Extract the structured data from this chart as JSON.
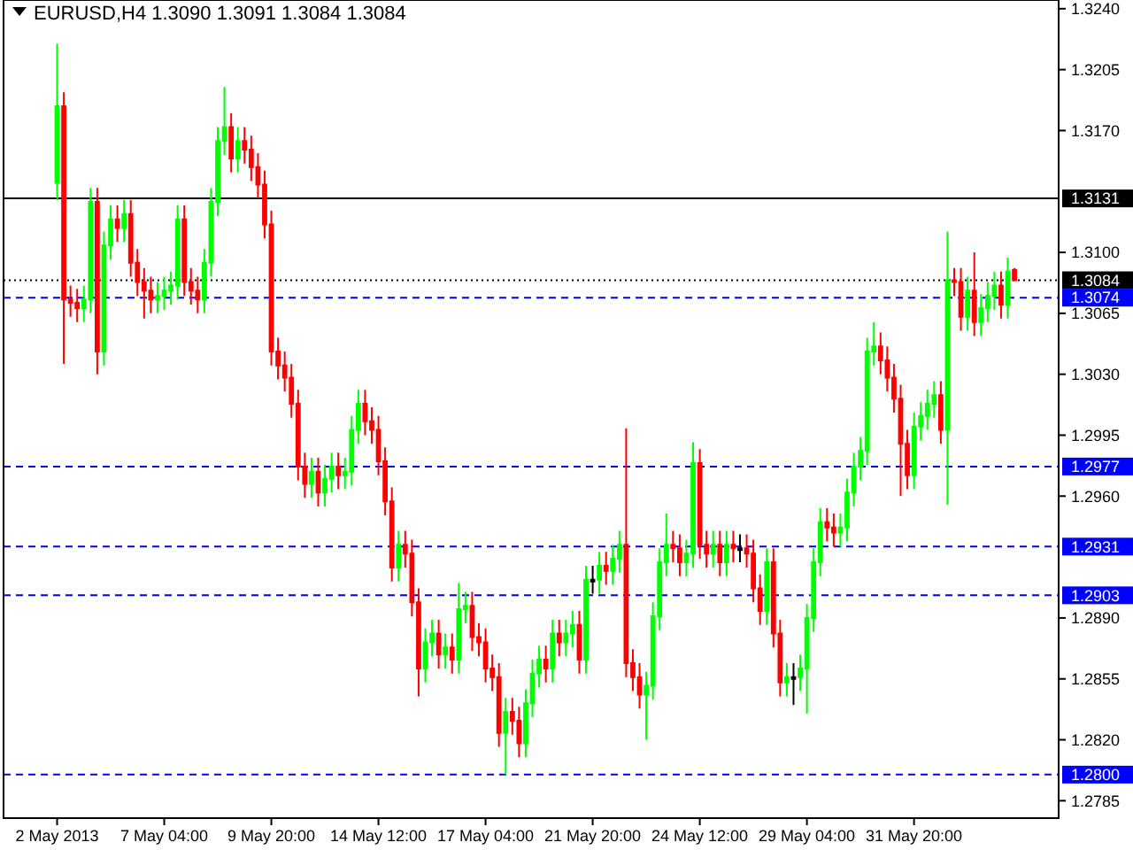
{
  "chart_data": {
    "type": "candlestick",
    "title": "EURUSD,H4  1.3090 1.3091 1.3084 1.3084",
    "categories": [
      "2 May 2013",
      null,
      null,
      null,
      null,
      null,
      null,
      null,
      null,
      null,
      null,
      null,
      null,
      null,
      null,
      null,
      "7 May 04:00",
      null,
      null,
      null,
      null,
      null,
      null,
      null,
      null,
      null,
      null,
      null,
      null,
      null,
      null,
      null,
      "9 May 20:00",
      null,
      null,
      null,
      null,
      null,
      null,
      null,
      null,
      null,
      null,
      null,
      null,
      null,
      null,
      null,
      "14 May 12:00",
      null,
      null,
      null,
      null,
      null,
      null,
      null,
      null,
      null,
      null,
      null,
      null,
      null,
      null,
      null,
      "17 May 04:00",
      null,
      null,
      null,
      null,
      null,
      null,
      null,
      null,
      null,
      null,
      null,
      null,
      null,
      null,
      null,
      "21 May 20:00",
      null,
      null,
      null,
      null,
      null,
      null,
      null,
      null,
      null,
      null,
      null,
      null,
      null,
      null,
      null,
      "24 May 12:00",
      null,
      null,
      null,
      null,
      null,
      null,
      null,
      null,
      null,
      null,
      null,
      null,
      null,
      null,
      null,
      "29 May 04:00",
      null,
      null,
      null,
      null,
      null,
      null,
      null,
      null,
      null,
      null,
      null,
      null,
      null,
      null,
      null,
      "31 May 20:00",
      null,
      null,
      null,
      null,
      null,
      null,
      null,
      null,
      null,
      null,
      null,
      null,
      null,
      null,
      null
    ],
    "ohlc": [
      [
        1.314,
        1.322,
        1.313,
        1.3184
      ],
      [
        1.3184,
        1.3192,
        1.3036,
        1.3073
      ],
      [
        1.3073,
        1.3081,
        1.3063,
        1.3071
      ],
      [
        1.3071,
        1.3079,
        1.306,
        1.3068
      ],
      [
        1.3068,
        1.3081,
        1.306,
        1.3073
      ],
      [
        1.3073,
        1.3137,
        1.3065,
        1.3129
      ],
      [
        1.3129,
        1.3137,
        1.303,
        1.3043
      ],
      [
        1.3043,
        1.3112,
        1.3035,
        1.3104
      ],
      [
        1.3104,
        1.3127,
        1.3096,
        1.3119
      ],
      [
        1.3119,
        1.3127,
        1.3106,
        1.3114
      ],
      [
        1.3114,
        1.313,
        1.3106,
        1.3122
      ],
      [
        1.3122,
        1.313,
        1.3086,
        1.3094
      ],
      [
        1.3094,
        1.3102,
        1.3075,
        1.3083
      ],
      [
        1.3083,
        1.3091,
        1.3062,
        1.3078
      ],
      [
        1.3078,
        1.3086,
        1.3065,
        1.3073
      ],
      [
        1.3073,
        1.3083,
        1.3065,
        1.3075
      ],
      [
        1.3075,
        1.3086,
        1.3067,
        1.3078
      ],
      [
        1.3078,
        1.3089,
        1.307,
        1.3081
      ],
      [
        1.3081,
        1.3127,
        1.3073,
        1.3119
      ],
      [
        1.3119,
        1.3127,
        1.3075,
        1.3083
      ],
      [
        1.3083,
        1.3091,
        1.307,
        1.3078
      ],
      [
        1.3078,
        1.3086,
        1.3065,
        1.3073
      ],
      [
        1.3073,
        1.3102,
        1.3065,
        1.3094
      ],
      [
        1.3094,
        1.3137,
        1.3086,
        1.3129
      ],
      [
        1.3129,
        1.3172,
        1.3121,
        1.3164
      ],
      [
        1.3164,
        1.3195,
        1.3156,
        1.3172
      ],
      [
        1.3172,
        1.318,
        1.3146,
        1.3154
      ],
      [
        1.3154,
        1.3172,
        1.3146,
        1.3164
      ],
      [
        1.3164,
        1.3172,
        1.3151,
        1.3159
      ],
      [
        1.3159,
        1.3167,
        1.3141,
        1.3149
      ],
      [
        1.3149,
        1.3157,
        1.3131,
        1.3139
      ],
      [
        1.3139,
        1.3147,
        1.3108,
        1.3116
      ],
      [
        1.3116,
        1.3124,
        1.3035,
        1.3043
      ],
      [
        1.3043,
        1.3051,
        1.3027,
        1.3035
      ],
      [
        1.3035,
        1.3043,
        1.302,
        1.3028
      ],
      [
        1.3028,
        1.3036,
        1.3005,
        1.3013
      ],
      [
        1.3013,
        1.3021,
        1.2969,
        1.2977
      ],
      [
        1.2977,
        1.2985,
        1.2959,
        1.2967
      ],
      [
        1.2967,
        1.2982,
        1.2959,
        1.2974
      ],
      [
        1.2974,
        1.2982,
        1.2954,
        1.2962
      ],
      [
        1.2962,
        1.2978,
        1.2954,
        1.297
      ],
      [
        1.297,
        1.2985,
        1.2962,
        1.2977
      ],
      [
        1.2977,
        1.2985,
        1.2964,
        1.2972
      ],
      [
        1.2972,
        1.2982,
        1.2964,
        1.2974
      ],
      [
        1.2974,
        1.3006,
        1.2966,
        1.2998
      ],
      [
        1.2998,
        1.3021,
        1.299,
        1.3013
      ],
      [
        1.3013,
        1.3021,
        1.2995,
        1.3003
      ],
      [
        1.3003,
        1.3011,
        1.299,
        1.2998
      ],
      [
        1.2998,
        1.3006,
        1.2972,
        1.298
      ],
      [
        1.298,
        1.2988,
        1.2949,
        1.2957
      ],
      [
        1.2957,
        1.2965,
        1.2911,
        1.2919
      ],
      [
        1.2919,
        1.294,
        1.2911,
        1.2932
      ],
      [
        1.2932,
        1.294,
        1.2919,
        1.2927
      ],
      [
        1.2927,
        1.2935,
        1.2891,
        1.2899
      ],
      [
        1.2899,
        1.2907,
        1.2845,
        1.2861
      ],
      [
        1.2861,
        1.2884,
        1.2853,
        1.2876
      ],
      [
        1.2876,
        1.2889,
        1.2868,
        1.2881
      ],
      [
        1.2881,
        1.2889,
        1.2861,
        1.2869
      ],
      [
        1.2869,
        1.2881,
        1.2861,
        1.2873
      ],
      [
        1.2873,
        1.2881,
        1.2858,
        1.2866
      ],
      [
        1.2866,
        1.291,
        1.2858,
        1.2895
      ],
      [
        1.2895,
        1.2905,
        1.2887,
        1.2897
      ],
      [
        1.2897,
        1.2905,
        1.2871,
        1.2879
      ],
      [
        1.2879,
        1.2887,
        1.2868,
        1.2876
      ],
      [
        1.2876,
        1.2884,
        1.2853,
        1.2861
      ],
      [
        1.2861,
        1.2869,
        1.2848,
        1.2856
      ],
      [
        1.2856,
        1.2864,
        1.2816,
        1.2824
      ],
      [
        1.2824,
        1.2844,
        1.28,
        1.2836
      ],
      [
        1.2836,
        1.2844,
        1.2823,
        1.2831
      ],
      [
        1.2831,
        1.2839,
        1.281,
        1.2818
      ],
      [
        1.2818,
        1.2849,
        1.281,
        1.2841
      ],
      [
        1.2841,
        1.2866,
        1.2833,
        1.2858
      ],
      [
        1.2858,
        1.2874,
        1.285,
        1.2866
      ],
      [
        1.2866,
        1.2874,
        1.2853,
        1.2861
      ],
      [
        1.2861,
        1.2889,
        1.2853,
        1.2881
      ],
      [
        1.2881,
        1.2889,
        1.2868,
        1.2876
      ],
      [
        1.2876,
        1.2889,
        1.2868,
        1.2881
      ],
      [
        1.2881,
        1.2894,
        1.2873,
        1.2886
      ],
      [
        1.2886,
        1.2894,
        1.2858,
        1.2866
      ],
      [
        1.2866,
        1.292,
        1.2858,
        1.2912
      ],
      [
        1.2912,
        1.292,
        1.2904,
        1.2912
      ],
      [
        1.2912,
        1.2928,
        1.2904,
        1.292
      ],
      [
        1.292,
        1.2928,
        1.2909,
        1.2917
      ],
      [
        1.2917,
        1.2932,
        1.2909,
        1.2924
      ],
      [
        1.2924,
        1.294,
        1.2916,
        1.2932
      ],
      [
        1.2932,
        1.2999,
        1.2856,
        1.2864
      ],
      [
        1.2864,
        1.2872,
        1.2848,
        1.2856
      ],
      [
        1.2856,
        1.2864,
        1.2838,
        1.2846
      ],
      [
        1.2846,
        1.2859,
        1.282,
        1.2851
      ],
      [
        1.2851,
        1.2899,
        1.2843,
        1.2891
      ],
      [
        1.2891,
        1.293,
        1.2883,
        1.2922
      ],
      [
        1.2922,
        1.295,
        1.2914,
        1.2932
      ],
      [
        1.2932,
        1.294,
        1.2922,
        1.293
      ],
      [
        1.293,
        1.2938,
        1.2914,
        1.2922
      ],
      [
        1.2922,
        1.2935,
        1.2914,
        1.2927
      ],
      [
        1.2927,
        1.2991,
        1.2919,
        1.2979
      ],
      [
        1.2979,
        1.2987,
        1.2924,
        1.2932
      ],
      [
        1.2932,
        1.294,
        1.2919,
        1.2927
      ],
      [
        1.2927,
        1.294,
        1.2919,
        1.2932
      ],
      [
        1.2932,
        1.294,
        1.2914,
        1.2922
      ],
      [
        1.2922,
        1.294,
        1.2914,
        1.2932
      ],
      [
        1.2932,
        1.294,
        1.2922,
        1.293
      ],
      [
        1.293,
        1.2938,
        1.2922,
        1.293
      ],
      [
        1.293,
        1.2938,
        1.2919,
        1.2927
      ],
      [
        1.2927,
        1.2935,
        1.2899,
        1.2907
      ],
      [
        1.2907,
        1.2915,
        1.2886,
        1.2894
      ],
      [
        1.2894,
        1.293,
        1.2886,
        1.2922
      ],
      [
        1.2922,
        1.293,
        1.2873,
        1.2881
      ],
      [
        1.2881,
        1.2889,
        1.2845,
        1.2853
      ],
      [
        1.2853,
        1.2864,
        1.2845,
        1.2856
      ],
      [
        1.2856,
        1.2864,
        1.284,
        1.2856
      ],
      [
        1.2856,
        1.2869,
        1.2848,
        1.2861
      ],
      [
        1.2861,
        1.2898,
        1.2835,
        1.289
      ],
      [
        1.289,
        1.293,
        1.2882,
        1.2922
      ],
      [
        1.2922,
        1.2953,
        1.2914,
        1.2945
      ],
      [
        1.2945,
        1.2953,
        1.2934,
        1.2942
      ],
      [
        1.2942,
        1.295,
        1.2931,
        1.2939
      ],
      [
        1.2939,
        1.295,
        1.2931,
        1.2942
      ],
      [
        1.2942,
        1.297,
        1.2934,
        1.2962
      ],
      [
        1.2962,
        1.2985,
        1.2954,
        1.2977
      ],
      [
        1.2977,
        1.2994,
        1.2969,
        1.2986
      ],
      [
        1.2986,
        1.3051,
        1.2978,
        1.3043
      ],
      [
        1.3043,
        1.306,
        1.3035,
        1.3046
      ],
      [
        1.3046,
        1.3054,
        1.303,
        1.3038
      ],
      [
        1.3038,
        1.3046,
        1.302,
        1.3028
      ],
      [
        1.3028,
        1.3036,
        1.3008,
        1.3016
      ],
      [
        1.3016,
        1.3024,
        1.296,
        1.299
      ],
      [
        1.299,
        1.2998,
        1.2964,
        1.2972
      ],
      [
        1.2972,
        1.3008,
        1.2964,
        1.3
      ],
      [
        1.3,
        1.3014,
        1.2992,
        1.3006
      ],
      [
        1.3006,
        1.3021,
        1.2998,
        1.3013
      ],
      [
        1.3013,
        1.3026,
        1.3005,
        1.3018
      ],
      [
        1.3018,
        1.3026,
        1.299,
        1.2998
      ],
      [
        1.2998,
        1.3112,
        1.2955,
        1.3084
      ],
      [
        1.3084,
        1.3091,
        1.3075,
        1.3083
      ],
      [
        1.3083,
        1.3091,
        1.3055,
        1.3063
      ],
      [
        1.3063,
        1.3086,
        1.3055,
        1.3078
      ],
      [
        1.3078,
        1.31,
        1.3052,
        1.306
      ],
      [
        1.306,
        1.3076,
        1.3052,
        1.3068
      ],
      [
        1.3068,
        1.3083,
        1.306,
        1.3075
      ],
      [
        1.3075,
        1.3089,
        1.3067,
        1.3081
      ],
      [
        1.3081,
        1.3089,
        1.3062,
        1.307
      ],
      [
        1.307,
        1.3097,
        1.3062,
        1.3089
      ],
      [
        1.309,
        1.3091,
        1.3084,
        1.3084
      ]
    ],
    "colors": [
      "#00ff00",
      "#ff0000",
      "#ff0000",
      "#ff0000",
      "#00ff00",
      "#00ff00",
      "#ff0000",
      "#00ff00",
      "#00ff00",
      "#ff0000",
      "#00ff00",
      "#ff0000",
      "#ff0000",
      "#ff0000",
      "#ff0000",
      "#00ff00",
      "#00ff00",
      "#00ff00",
      "#00ff00",
      "#ff0000",
      "#ff0000",
      "#ff0000",
      "#00ff00",
      "#00ff00",
      "#00ff00",
      "#00ff00",
      "#ff0000",
      "#00ff00",
      "#ff0000",
      "#ff0000",
      "#ff0000",
      "#ff0000",
      "#ff0000",
      "#ff0000",
      "#ff0000",
      "#ff0000",
      "#ff0000",
      "#ff0000",
      "#00ff00",
      "#ff0000",
      "#00ff00",
      "#00ff00",
      "#ff0000",
      "#00ff00",
      "#00ff00",
      "#00ff00",
      "#ff0000",
      "#ff0000",
      "#ff0000",
      "#ff0000",
      "#ff0000",
      "#00ff00",
      "#ff0000",
      "#ff0000",
      "#ff0000",
      "#00ff00",
      "#00ff00",
      "#ff0000",
      "#00ff00",
      "#ff0000",
      "#00ff00",
      "#00ff00",
      "#ff0000",
      "#ff0000",
      "#ff0000",
      "#ff0000",
      "#ff0000",
      "#00ff00",
      "#ff0000",
      "#ff0000",
      "#00ff00",
      "#00ff00",
      "#00ff00",
      "#ff0000",
      "#00ff00",
      "#ff0000",
      "#00ff00",
      "#00ff00",
      "#ff0000",
      "#00ff00",
      "#000000",
      "#00ff00",
      "#ff0000",
      "#00ff00",
      "#00ff00",
      "#ff0000",
      "#ff0000",
      "#ff0000",
      "#00ff00",
      "#00ff00",
      "#00ff00",
      "#00ff00",
      "#ff0000",
      "#ff0000",
      "#00ff00",
      "#00ff00",
      "#ff0000",
      "#ff0000",
      "#00ff00",
      "#ff0000",
      "#00ff00",
      "#ff0000",
      "#000000",
      "#ff0000",
      "#ff0000",
      "#ff0000",
      "#00ff00",
      "#ff0000",
      "#ff0000",
      "#00ff00",
      "#000000",
      "#00ff00",
      "#00ff00",
      "#00ff00",
      "#00ff00",
      "#ff0000",
      "#ff0000",
      "#00ff00",
      "#00ff00",
      "#00ff00",
      "#00ff00",
      "#00ff00",
      "#00ff00",
      "#ff0000",
      "#ff0000",
      "#ff0000",
      "#ff0000",
      "#ff0000",
      "#00ff00",
      "#00ff00",
      "#00ff00",
      "#00ff00",
      "#ff0000",
      "#00ff00",
      "#ff0000",
      "#ff0000",
      "#00ff00",
      "#ff0000",
      "#00ff00",
      "#00ff00",
      "#00ff00",
      "#ff0000",
      "#00ff00",
      "#ff0000"
    ],
    "ylim": [
      1.2775,
      1.3245
    ],
    "yticks": [
      {
        "value": 1.324,
        "label": "1.3240"
      },
      {
        "value": 1.3205,
        "label": "1.3205"
      },
      {
        "value": 1.317,
        "label": "1.3170"
      },
      {
        "value": 1.31,
        "label": "1.3100"
      },
      {
        "value": 1.3065,
        "label": "1.3065"
      },
      {
        "value": 1.303,
        "label": "1.3030"
      },
      {
        "value": 1.2995,
        "label": "1.2995"
      },
      {
        "value": 1.296,
        "label": "1.2960"
      },
      {
        "value": 1.289,
        "label": "1.2890"
      },
      {
        "value": 1.2855,
        "label": "1.2855"
      },
      {
        "value": 1.282,
        "label": "1.2820"
      },
      {
        "value": 1.2785,
        "label": "1.2785"
      }
    ],
    "ref_lines": [
      {
        "axis": "y",
        "value": 1.3131,
        "label": "1.3131",
        "color": "#000000",
        "line_style": "solid"
      },
      {
        "axis": "y",
        "value": 1.3084,
        "label": "1.3084",
        "color": "#000000",
        "line_style": "dotted"
      },
      {
        "axis": "y",
        "value": 1.3074,
        "label": "1.3074",
        "color": "#0000ff",
        "line_style": "dashed"
      },
      {
        "axis": "y",
        "value": 1.2977,
        "label": "1.2977",
        "color": "#0000ff",
        "line_style": "dashed"
      },
      {
        "axis": "y",
        "value": 1.2931,
        "label": "1.2931",
        "color": "#0000ff",
        "line_style": "dashed"
      },
      {
        "axis": "y",
        "value": 1.2903,
        "label": "1.2903",
        "color": "#0000ff",
        "line_style": "dashed"
      },
      {
        "axis": "y",
        "value": 1.28,
        "label": "1.2800",
        "color": "#0000ff",
        "line_style": "dashed"
      }
    ],
    "tick_labels": true
  }
}
